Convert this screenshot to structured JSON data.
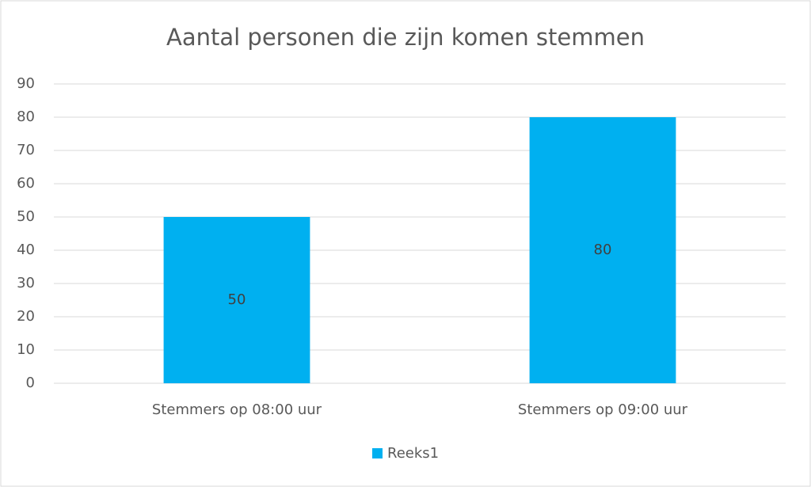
{
  "chart_data": {
    "type": "bar",
    "title": "Aantal personen die zijn komen stemmen",
    "categories": [
      "Stemmers op 08:00 uur",
      "Stemmers op 09:00 uur"
    ],
    "series": [
      {
        "name": "Reeks1",
        "color": "#00b0f0",
        "values": [
          50,
          80
        ]
      }
    ],
    "ylim": [
      0,
      90
    ],
    "yticks": [
      0,
      10,
      20,
      30,
      40,
      50,
      60,
      70,
      80,
      90
    ],
    "grid": true,
    "legend": "bottom"
  }
}
